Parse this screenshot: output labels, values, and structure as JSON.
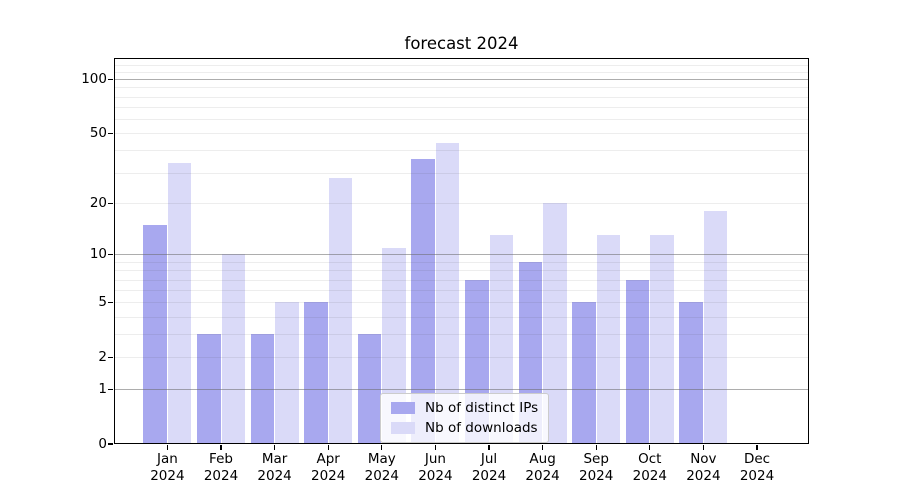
{
  "chart_data": {
    "type": "bar",
    "title": "forecast 2024",
    "categories": [
      "Jan",
      "Feb",
      "Mar",
      "Apr",
      "May",
      "Jun",
      "Jul",
      "Aug",
      "Sep",
      "Oct",
      "Nov",
      "Dec"
    ],
    "year": "2024",
    "series": [
      {
        "name": "Nb of distinct IPs",
        "color": "#a8a8ef",
        "values": [
          15,
          3,
          3,
          5,
          3,
          36,
          7,
          9,
          5,
          7,
          5,
          0
        ]
      },
      {
        "name": "Nb of downloads",
        "color": "#dadaf8",
        "values": [
          34,
          10,
          5,
          28,
          11,
          44,
          13,
          20,
          13,
          13,
          18,
          0
        ]
      }
    ],
    "yscale": "log1p",
    "yticks": [
      0,
      1,
      2,
      5,
      10,
      20,
      50,
      100
    ],
    "ylim": [
      0,
      131
    ],
    "gridlines_strong": [
      1,
      10,
      100
    ],
    "gridlines_weak": [
      2,
      3,
      4,
      5,
      6,
      7,
      8,
      9,
      20,
      30,
      40,
      50,
      60,
      70,
      80,
      90,
      110,
      120
    ],
    "legend_position": "lower center",
    "grid": true
  }
}
